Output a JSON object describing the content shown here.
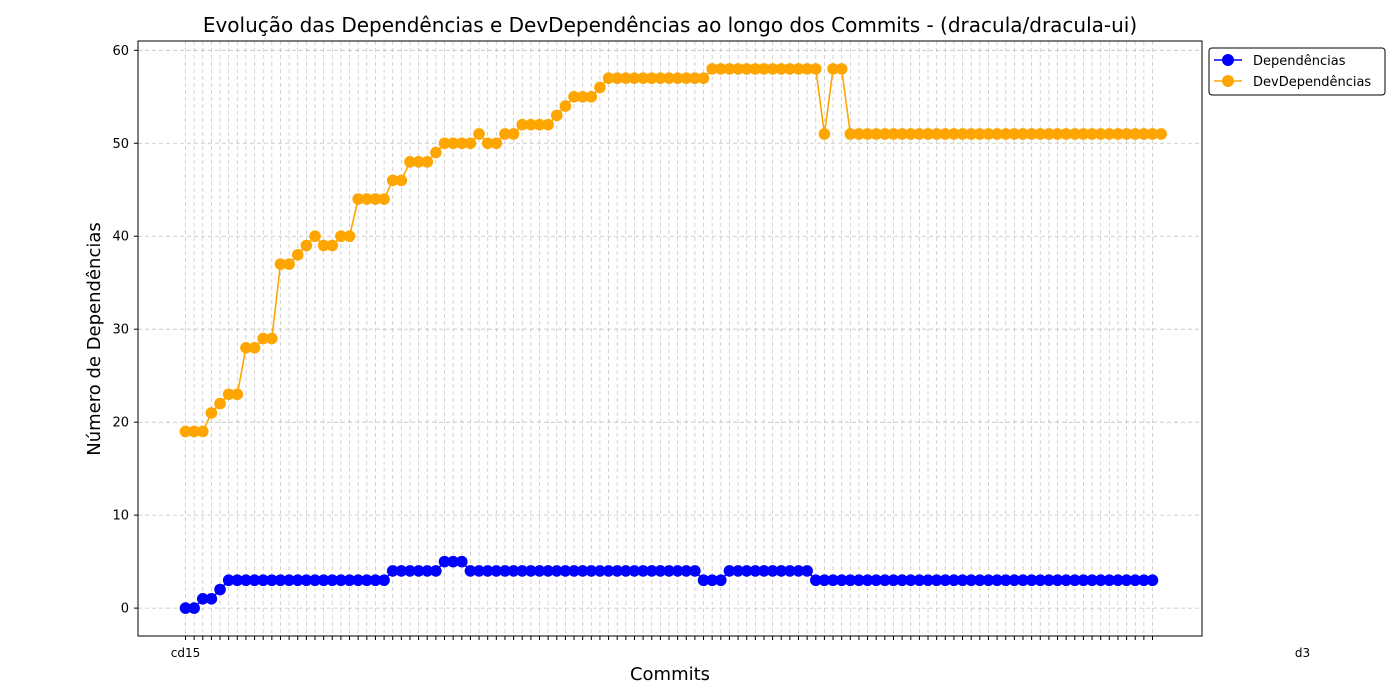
{
  "chart_data": {
    "type": "line",
    "title": "Evolução das Dependências e DevDependências ao longo dos Commits - (dracula/dracula-ui)",
    "xlabel": "Commits",
    "ylabel": "Número de Dependências",
    "ylim": [
      -3,
      61
    ],
    "yticks": [
      0,
      10,
      20,
      30,
      40,
      50,
      60
    ],
    "grid": true,
    "legend_position": "outside top-right",
    "x_first_label": "cd15",
    "x_last_label": "d3",
    "series": [
      {
        "name": "Dependências",
        "color": "#0000ff",
        "values": [
          0,
          0,
          1,
          1,
          2,
          3,
          3,
          3,
          3,
          3,
          3,
          3,
          3,
          3,
          3,
          3,
          3,
          3,
          3,
          3,
          3,
          3,
          3,
          3,
          4,
          4,
          4,
          4,
          4,
          4,
          5,
          5,
          5,
          4,
          4,
          4,
          4,
          4,
          4,
          4,
          4,
          4,
          4,
          4,
          4,
          4,
          4,
          4,
          4,
          4,
          4,
          4,
          4,
          4,
          4,
          4,
          4,
          4,
          4,
          4,
          3,
          3,
          3,
          4,
          4,
          4,
          4,
          4,
          4,
          4,
          4,
          4,
          4,
          3,
          3,
          3,
          3,
          3,
          3,
          3,
          3,
          3,
          3,
          3,
          3,
          3,
          3,
          3,
          3,
          3,
          3,
          3,
          3,
          3,
          3,
          3,
          3,
          3,
          3,
          3,
          3,
          3,
          3,
          3,
          3,
          3,
          3,
          3,
          3,
          3,
          3,
          3,
          3
        ]
      },
      {
        "name": "DevDependências",
        "color": "#ffa500",
        "values": [
          19,
          19,
          19,
          21,
          22,
          23,
          23,
          28,
          28,
          29,
          29,
          37,
          37,
          38,
          39,
          40,
          39,
          39,
          40,
          40,
          44,
          44,
          44,
          44,
          46,
          46,
          48,
          48,
          48,
          49,
          50,
          50,
          50,
          50,
          51,
          50,
          50,
          51,
          51,
          52,
          52,
          52,
          52,
          53,
          54,
          55,
          55,
          55,
          56,
          57,
          57,
          57,
          57,
          57,
          57,
          57,
          57,
          57,
          57,
          57,
          57,
          58,
          58,
          58,
          58,
          58,
          58,
          58,
          58,
          58,
          58,
          58,
          58,
          58,
          51,
          58,
          58,
          51,
          51,
          51,
          51,
          51,
          51,
          51,
          51,
          51,
          51,
          51,
          51,
          51,
          51,
          51,
          51,
          51,
          51,
          51,
          51,
          51,
          51,
          51,
          51,
          51,
          51,
          51,
          51,
          51,
          51,
          51,
          51,
          51,
          51,
          51,
          51,
          51
        ]
      }
    ]
  }
}
